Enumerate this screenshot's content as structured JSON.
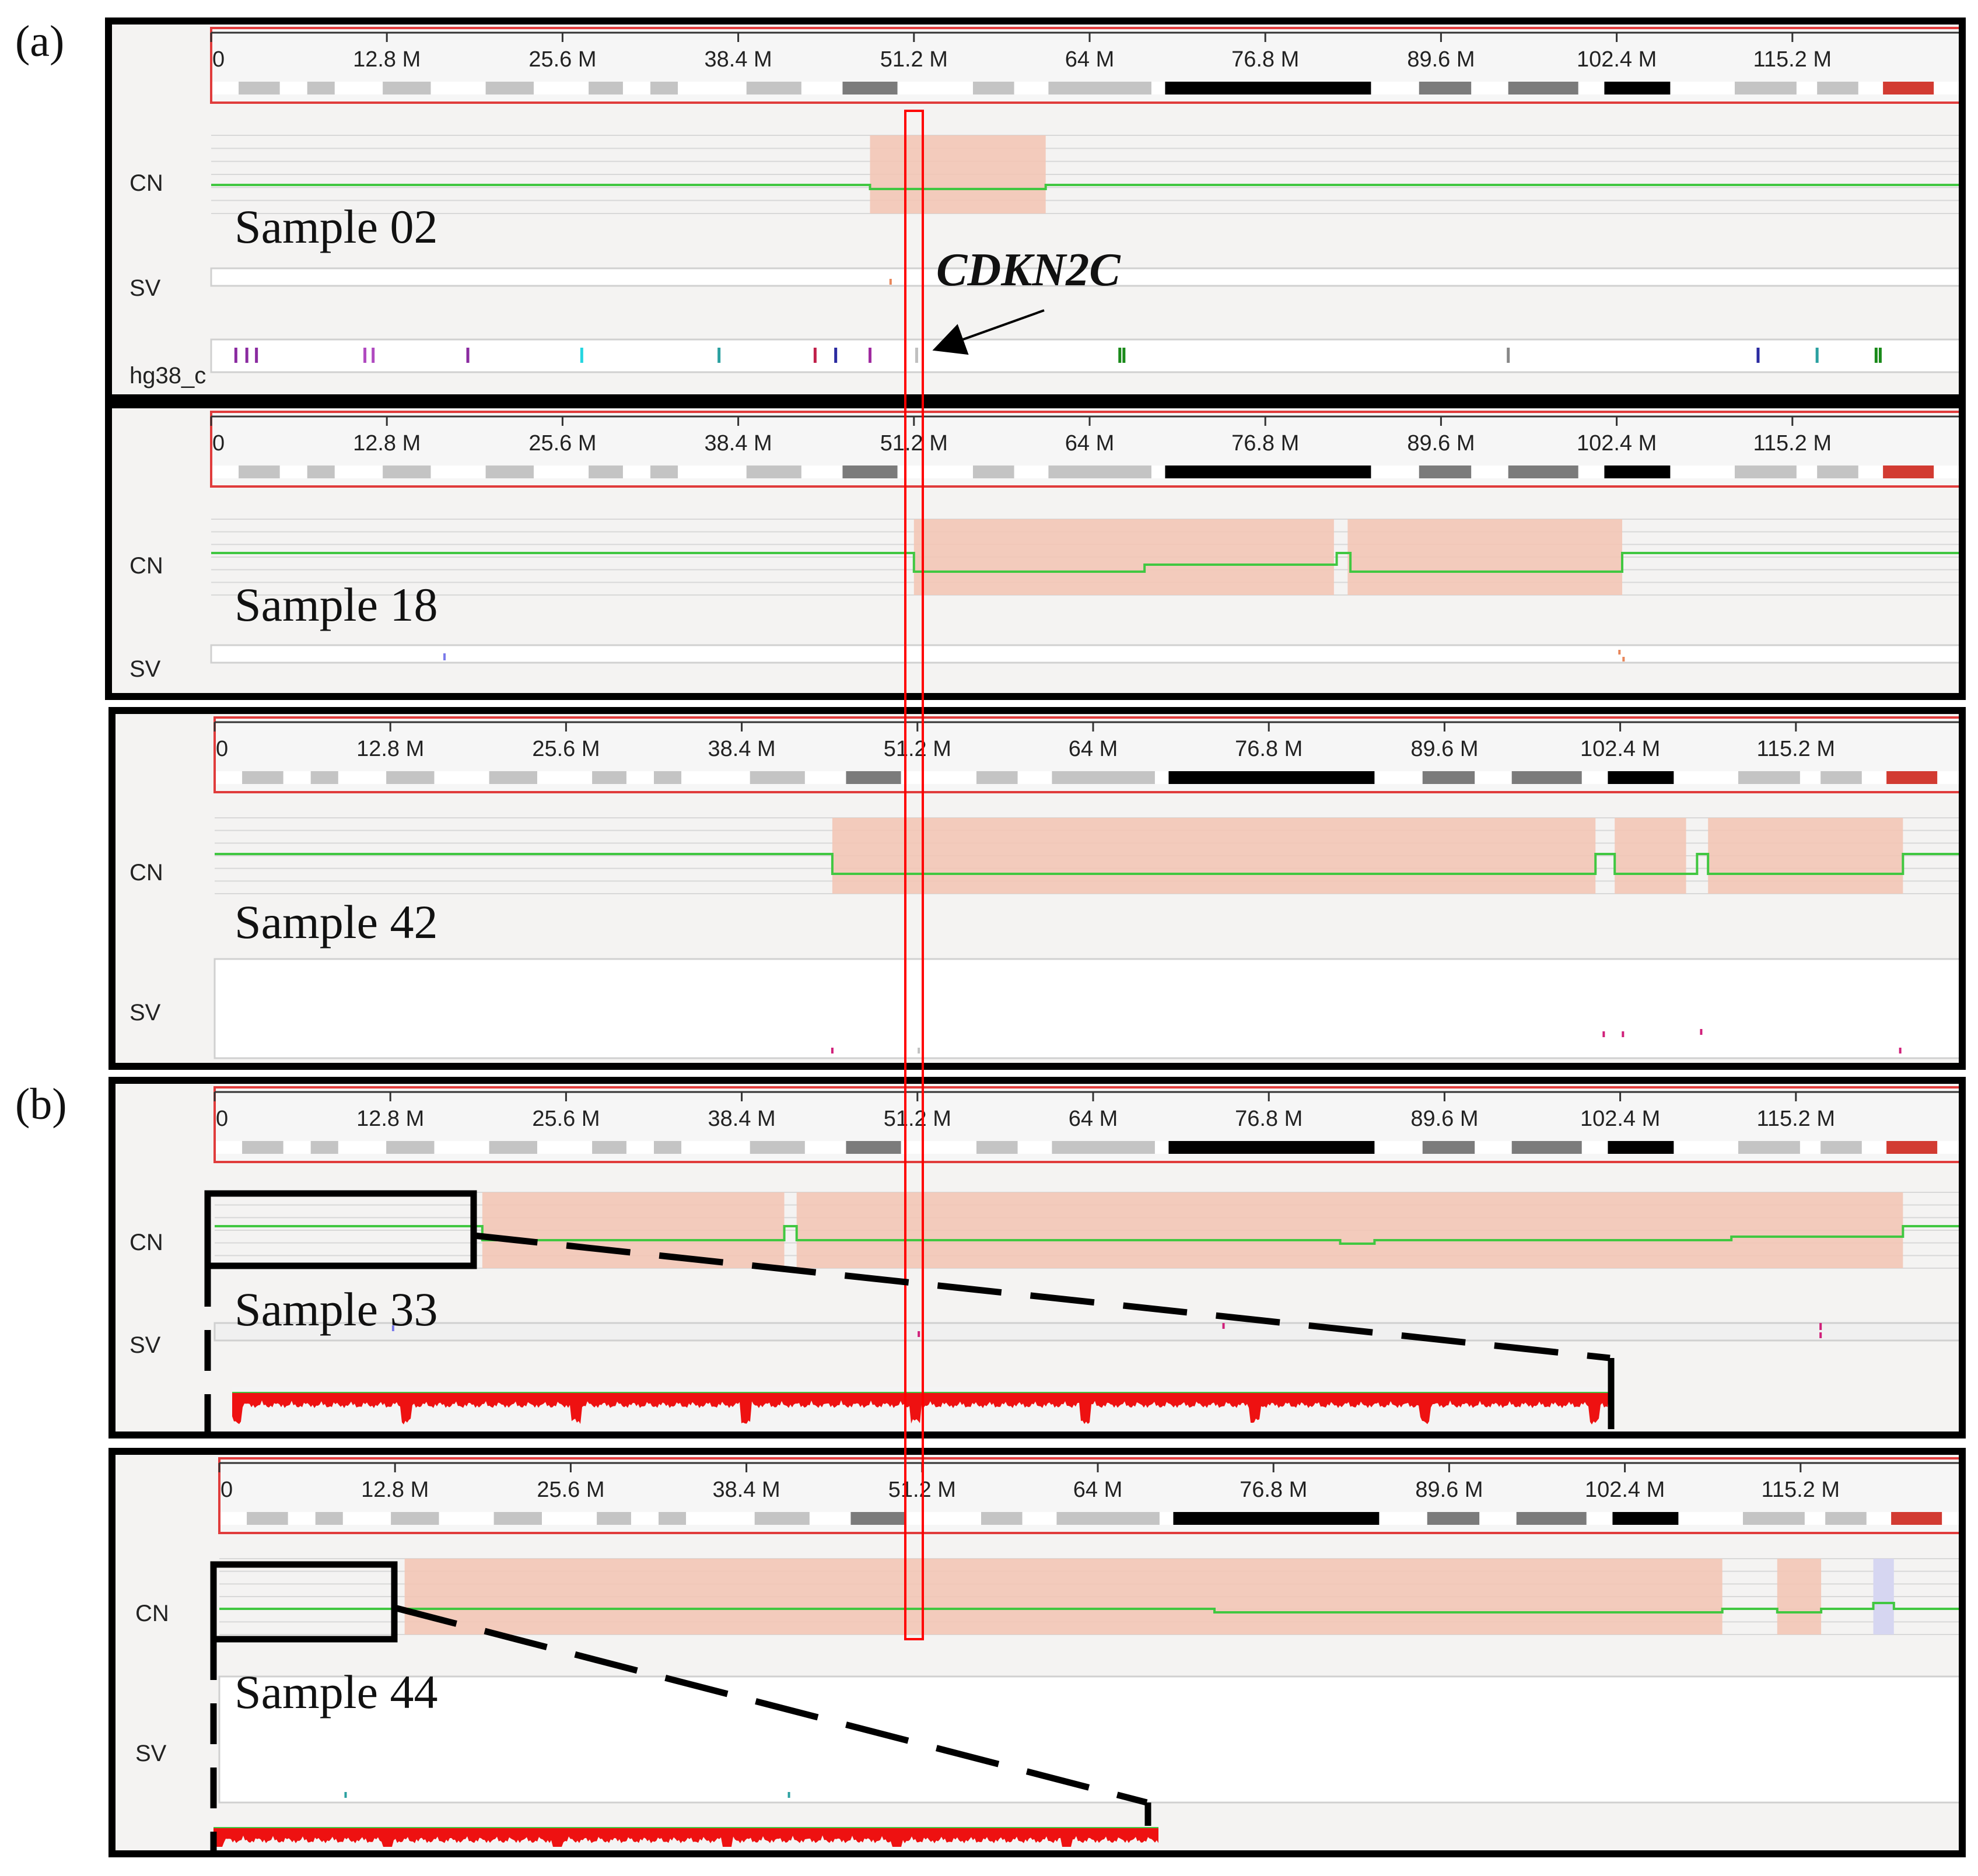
{
  "figure_labels": {
    "a": "(a)",
    "b": "(b)"
  },
  "ruler_ticks": [
    "0",
    "12.8 M",
    "25.6 M",
    "38.4 M",
    "51.2 M",
    "64 M",
    "76.8 M",
    "89.6 M",
    "102.4 M",
    "115.2 M"
  ],
  "track_labels": {
    "cn": "CN",
    "sv": "SV",
    "ref": "hg38_c"
  },
  "annotation": {
    "gene": "CDKN2C"
  },
  "colors": {
    "cn_line": "#41c741",
    "loss_band": "#f3c7b6",
    "gain_band": "#d6d6f1",
    "highlight": "#ff0000",
    "ruler_border": "#e03c3c",
    "coverage": "#ee1111",
    "panel_border": "#000000"
  },
  "panels": [
    {
      "id": "sample-02",
      "sample": "Sample 02",
      "group": "a"
    },
    {
      "id": "sample-18",
      "sample": "Sample 18",
      "group": "a"
    },
    {
      "id": "sample-42",
      "sample": "Sample 42",
      "group": "a"
    },
    {
      "id": "sample-33",
      "sample": "Sample 33",
      "group": "b"
    },
    {
      "id": "sample-44",
      "sample": "Sample 44",
      "group": "b"
    }
  ]
}
